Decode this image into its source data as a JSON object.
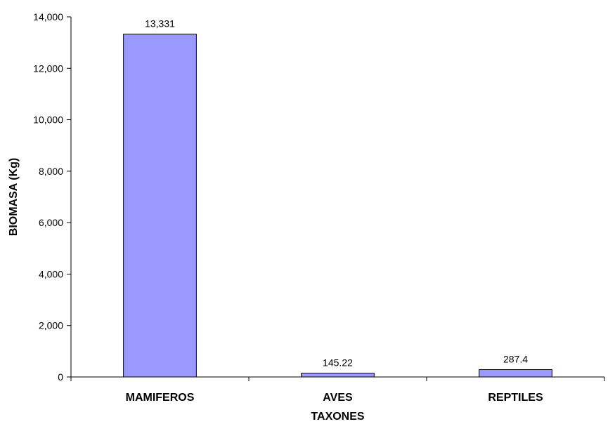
{
  "chart_data": {
    "type": "bar",
    "title": "",
    "xlabel": "TAXONES",
    "ylabel": "BIOMASA (Kg)",
    "categories": [
      "MAMIFEROS",
      "AVES",
      "REPTILES"
    ],
    "values": [
      13331,
      145.22,
      287.4
    ],
    "data_labels": [
      "13,331",
      "145.22",
      "287.4"
    ],
    "ylim": [
      0,
      14000
    ],
    "yticks": [
      0,
      2000,
      4000,
      6000,
      8000,
      10000,
      12000,
      14000
    ],
    "ytick_labels": [
      "0",
      "2,000",
      "4,000",
      "6,000",
      "8,000",
      "10,000",
      "12,000",
      "14,000"
    ],
    "grid": false,
    "legend": "none",
    "colors": {
      "bar_fill": "#9999ff",
      "bar_stroke": "#000000",
      "axis": "#000000"
    }
  }
}
